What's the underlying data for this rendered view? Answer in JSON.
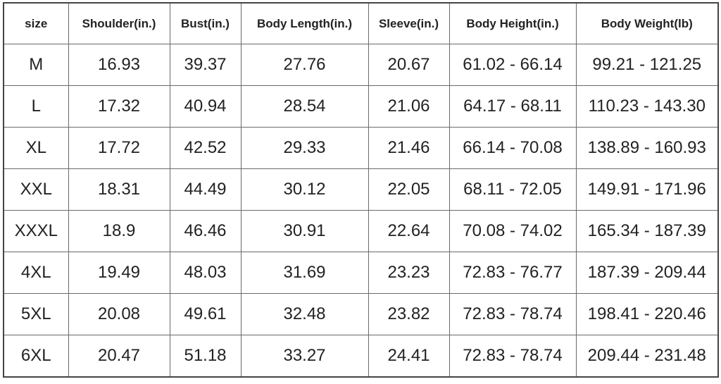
{
  "table": {
    "headers": [
      "size",
      "Shoulder(in.)",
      "Bust(in.)",
      "Body Length(in.)",
      "Sleeve(in.)",
      "Body Height(in.)",
      "Body Weight(lb)"
    ],
    "rows": [
      [
        "M",
        "16.93",
        "39.37",
        "27.76",
        "20.67",
        "61.02 - 66.14",
        "99.21 - 121.25"
      ],
      [
        "L",
        "17.32",
        "40.94",
        "28.54",
        "21.06",
        "64.17 - 68.11",
        "110.23 - 143.30"
      ],
      [
        "XL",
        "17.72",
        "42.52",
        "29.33",
        "21.46",
        "66.14 - 70.08",
        "138.89 - 160.93"
      ],
      [
        "XXL",
        "18.31",
        "44.49",
        "30.12",
        "22.05",
        "68.11 - 72.05",
        "149.91 - 171.96"
      ],
      [
        "XXXL",
        "18.9",
        "46.46",
        "30.91",
        "22.64",
        "70.08 - 74.02",
        "165.34 - 187.39"
      ],
      [
        "4XL",
        "19.49",
        "48.03",
        "31.69",
        "23.23",
        "72.83 - 76.77",
        "187.39 - 209.44"
      ],
      [
        "5XL",
        "20.08",
        "49.61",
        "32.48",
        "23.82",
        "72.83 - 78.74",
        "198.41 - 220.46"
      ],
      [
        "6XL",
        "20.47",
        "51.18",
        "33.27",
        "24.41",
        "72.83 - 78.74",
        "209.44 - 231.48"
      ]
    ]
  }
}
